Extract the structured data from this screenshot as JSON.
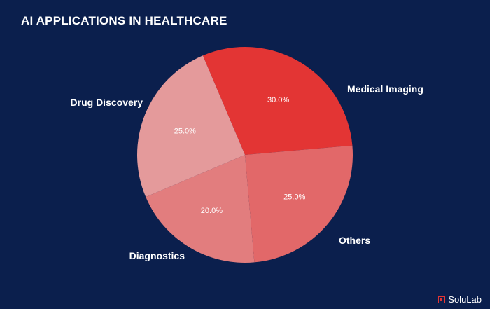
{
  "chart_data": {
    "type": "pie",
    "title": "AI APPLICATIONS IN HEALTHCARE",
    "slices": [
      {
        "label": "Medical Imaging",
        "value": 30.0,
        "value_label": "30.0%",
        "color": "#e33534"
      },
      {
        "label": "Others",
        "value": 25.0,
        "value_label": "25.0%",
        "color": "#e49a9b"
      },
      {
        "label": "Diagnostics",
        "value": 20.0,
        "value_label": "20.0%",
        "color": "#e27d7e"
      },
      {
        "label": "Drug Discovery",
        "value": 25.0,
        "value_label": "25.0%",
        "color": "#e26869"
      }
    ]
  },
  "colors": {
    "background": "#0b1f4d",
    "text": "#ffffff",
    "brand": "#e33534"
  },
  "brand": {
    "logo_text": "SoluLab",
    "logo_icon": "solulab-logo-icon"
  }
}
